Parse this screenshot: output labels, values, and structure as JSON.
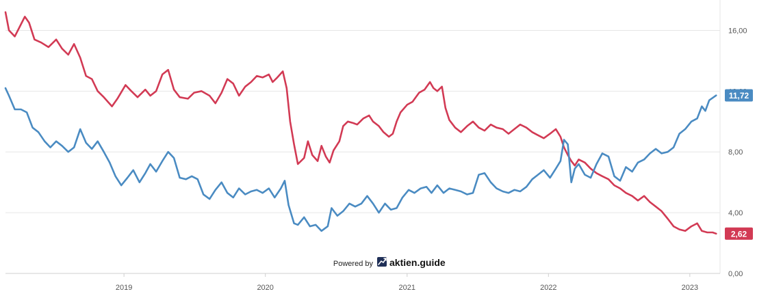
{
  "chart_data": {
    "type": "line",
    "x_axis_labels": [
      "2019",
      "2020",
      "2021",
      "2022",
      "2023"
    ],
    "y_axis_labels": [
      "0,00",
      "4,00",
      "8,00",
      "12,00",
      "16,00"
    ],
    "ylim": [
      0,
      18
    ],
    "xlim": [
      "2018-03-01",
      "2023-03-20"
    ],
    "grid": true,
    "series": [
      {
        "color": "#d23a54",
        "last_value_label": "2,62",
        "points": [
          [
            "2018-03-01",
            17.2
          ],
          [
            "2018-03-10",
            16.0
          ],
          [
            "2018-03-25",
            15.6
          ],
          [
            "2018-04-10",
            16.4
          ],
          [
            "2018-04-20",
            16.9
          ],
          [
            "2018-05-01",
            16.5
          ],
          [
            "2018-05-15",
            15.4
          ],
          [
            "2018-06-01",
            15.2
          ],
          [
            "2018-06-20",
            14.9
          ],
          [
            "2018-07-10",
            15.4
          ],
          [
            "2018-07-25",
            14.8
          ],
          [
            "2018-08-10",
            14.4
          ],
          [
            "2018-08-25",
            15.1
          ],
          [
            "2018-09-10",
            14.2
          ],
          [
            "2018-09-25",
            13.0
          ],
          [
            "2018-10-10",
            12.8
          ],
          [
            "2018-10-25",
            12.0
          ],
          [
            "2018-11-10",
            11.6
          ],
          [
            "2018-12-01",
            11.0
          ],
          [
            "2018-12-15",
            11.5
          ],
          [
            "2019-01-05",
            12.4
          ],
          [
            "2019-01-20",
            12.0
          ],
          [
            "2019-02-05",
            11.6
          ],
          [
            "2019-02-25",
            12.1
          ],
          [
            "2019-03-10",
            11.7
          ],
          [
            "2019-03-25",
            12.0
          ],
          [
            "2019-04-10",
            13.1
          ],
          [
            "2019-04-25",
            13.4
          ],
          [
            "2019-05-10",
            12.1
          ],
          [
            "2019-05-25",
            11.6
          ],
          [
            "2019-06-15",
            11.5
          ],
          [
            "2019-07-01",
            11.9
          ],
          [
            "2019-07-20",
            12.0
          ],
          [
            "2019-08-10",
            11.7
          ],
          [
            "2019-08-25",
            11.2
          ],
          [
            "2019-09-10",
            11.9
          ],
          [
            "2019-09-25",
            12.8
          ],
          [
            "2019-10-10",
            12.5
          ],
          [
            "2019-10-25",
            11.7
          ],
          [
            "2019-11-10",
            12.3
          ],
          [
            "2019-11-25",
            12.6
          ],
          [
            "2019-12-10",
            13.0
          ],
          [
            "2019-12-25",
            12.9
          ],
          [
            "2020-01-10",
            13.1
          ],
          [
            "2020-01-20",
            12.6
          ],
          [
            "2020-02-01",
            12.9
          ],
          [
            "2020-02-15",
            13.3
          ],
          [
            "2020-02-25",
            12.2
          ],
          [
            "2020-03-05",
            10.0
          ],
          [
            "2020-03-15",
            8.5
          ],
          [
            "2020-03-25",
            7.2
          ],
          [
            "2020-04-10",
            7.6
          ],
          [
            "2020-04-20",
            8.7
          ],
          [
            "2020-05-01",
            7.8
          ],
          [
            "2020-05-15",
            7.4
          ],
          [
            "2020-05-25",
            8.4
          ],
          [
            "2020-06-05",
            7.7
          ],
          [
            "2020-06-15",
            7.3
          ],
          [
            "2020-06-25",
            8.1
          ],
          [
            "2020-07-10",
            8.7
          ],
          [
            "2020-07-20",
            9.7
          ],
          [
            "2020-08-01",
            10.0
          ],
          [
            "2020-08-15",
            9.9
          ],
          [
            "2020-08-25",
            9.8
          ],
          [
            "2020-09-10",
            10.2
          ],
          [
            "2020-09-25",
            10.4
          ],
          [
            "2020-10-05",
            10.0
          ],
          [
            "2020-10-20",
            9.7
          ],
          [
            "2020-11-01",
            9.3
          ],
          [
            "2020-11-15",
            9.0
          ],
          [
            "2020-11-25",
            9.2
          ],
          [
            "2020-12-05",
            10.0
          ],
          [
            "2020-12-15",
            10.6
          ],
          [
            "2021-01-01",
            11.1
          ],
          [
            "2021-01-15",
            11.3
          ],
          [
            "2021-02-01",
            11.9
          ],
          [
            "2021-02-15",
            12.1
          ],
          [
            "2021-03-01",
            12.6
          ],
          [
            "2021-03-10",
            12.2
          ],
          [
            "2021-03-20",
            12.0
          ],
          [
            "2021-04-01",
            12.3
          ],
          [
            "2021-04-10",
            10.9
          ],
          [
            "2021-04-20",
            10.1
          ],
          [
            "2021-05-05",
            9.6
          ],
          [
            "2021-05-20",
            9.3
          ],
          [
            "2021-06-05",
            9.7
          ],
          [
            "2021-06-20",
            10.0
          ],
          [
            "2021-07-05",
            9.6
          ],
          [
            "2021-07-20",
            9.4
          ],
          [
            "2021-08-05",
            9.8
          ],
          [
            "2021-08-20",
            9.6
          ],
          [
            "2021-09-05",
            9.5
          ],
          [
            "2021-09-20",
            9.2
          ],
          [
            "2021-10-05",
            9.5
          ],
          [
            "2021-10-20",
            9.8
          ],
          [
            "2021-11-05",
            9.6
          ],
          [
            "2021-11-20",
            9.3
          ],
          [
            "2021-12-05",
            9.1
          ],
          [
            "2021-12-20",
            8.9
          ],
          [
            "2022-01-05",
            9.2
          ],
          [
            "2022-01-20",
            9.5
          ],
          [
            "2022-02-01",
            9.0
          ],
          [
            "2022-02-10",
            8.3
          ],
          [
            "2022-02-20",
            7.8
          ],
          [
            "2022-03-01",
            7.4
          ],
          [
            "2022-03-10",
            7.1
          ],
          [
            "2022-03-20",
            7.5
          ],
          [
            "2022-04-05",
            7.3
          ],
          [
            "2022-04-20",
            6.9
          ],
          [
            "2022-05-05",
            6.6
          ],
          [
            "2022-05-20",
            6.4
          ],
          [
            "2022-06-05",
            6.2
          ],
          [
            "2022-06-20",
            5.8
          ],
          [
            "2022-07-05",
            5.6
          ],
          [
            "2022-07-20",
            5.3
          ],
          [
            "2022-08-05",
            5.1
          ],
          [
            "2022-08-20",
            4.8
          ],
          [
            "2022-09-05",
            5.1
          ],
          [
            "2022-09-20",
            4.7
          ],
          [
            "2022-10-05",
            4.4
          ],
          [
            "2022-10-20",
            4.1
          ],
          [
            "2022-11-05",
            3.6
          ],
          [
            "2022-11-20",
            3.1
          ],
          [
            "2022-12-05",
            2.9
          ],
          [
            "2022-12-20",
            2.8
          ],
          [
            "2023-01-05",
            3.1
          ],
          [
            "2023-01-20",
            3.3
          ],
          [
            "2023-02-01",
            2.8
          ],
          [
            "2023-02-15",
            2.7
          ],
          [
            "2023-03-01",
            2.7
          ],
          [
            "2023-03-10",
            2.62
          ]
        ]
      },
      {
        "color": "#4a8bc2",
        "last_value_label": "11,72",
        "points": [
          [
            "2018-03-01",
            12.2
          ],
          [
            "2018-03-10",
            11.7
          ],
          [
            "2018-03-25",
            10.8
          ],
          [
            "2018-04-10",
            10.8
          ],
          [
            "2018-04-25",
            10.6
          ],
          [
            "2018-05-10",
            9.6
          ],
          [
            "2018-05-25",
            9.3
          ],
          [
            "2018-06-10",
            8.7
          ],
          [
            "2018-06-25",
            8.3
          ],
          [
            "2018-07-10",
            8.7
          ],
          [
            "2018-07-25",
            8.4
          ],
          [
            "2018-08-10",
            8.0
          ],
          [
            "2018-08-25",
            8.3
          ],
          [
            "2018-09-10",
            9.5
          ],
          [
            "2018-09-25",
            8.6
          ],
          [
            "2018-10-10",
            8.2
          ],
          [
            "2018-10-25",
            8.7
          ],
          [
            "2018-11-10",
            8.0
          ],
          [
            "2018-11-25",
            7.3
          ],
          [
            "2018-12-10",
            6.4
          ],
          [
            "2018-12-25",
            5.8
          ],
          [
            "2019-01-10",
            6.3
          ],
          [
            "2019-01-25",
            6.8
          ],
          [
            "2019-02-10",
            6.0
          ],
          [
            "2019-02-25",
            6.6
          ],
          [
            "2019-03-10",
            7.2
          ],
          [
            "2019-03-25",
            6.7
          ],
          [
            "2019-04-10",
            7.4
          ],
          [
            "2019-04-25",
            8.0
          ],
          [
            "2019-05-10",
            7.6
          ],
          [
            "2019-05-25",
            6.3
          ],
          [
            "2019-06-10",
            6.2
          ],
          [
            "2019-06-25",
            6.4
          ],
          [
            "2019-07-10",
            6.2
          ],
          [
            "2019-07-25",
            5.2
          ],
          [
            "2019-08-10",
            4.9
          ],
          [
            "2019-08-25",
            5.5
          ],
          [
            "2019-09-10",
            6.0
          ],
          [
            "2019-09-25",
            5.3
          ],
          [
            "2019-10-10",
            5.0
          ],
          [
            "2019-10-25",
            5.6
          ],
          [
            "2019-11-10",
            5.2
          ],
          [
            "2019-11-25",
            5.4
          ],
          [
            "2019-12-10",
            5.5
          ],
          [
            "2019-12-25",
            5.3
          ],
          [
            "2020-01-10",
            5.6
          ],
          [
            "2020-01-25",
            5.0
          ],
          [
            "2020-02-10",
            5.6
          ],
          [
            "2020-02-20",
            6.1
          ],
          [
            "2020-03-01",
            4.5
          ],
          [
            "2020-03-15",
            3.3
          ],
          [
            "2020-03-25",
            3.2
          ],
          [
            "2020-04-10",
            3.7
          ],
          [
            "2020-04-25",
            3.1
          ],
          [
            "2020-05-10",
            3.2
          ],
          [
            "2020-05-25",
            2.8
          ],
          [
            "2020-06-10",
            3.1
          ],
          [
            "2020-06-20",
            4.3
          ],
          [
            "2020-07-05",
            3.8
          ],
          [
            "2020-07-20",
            4.1
          ],
          [
            "2020-08-05",
            4.6
          ],
          [
            "2020-08-20",
            4.4
          ],
          [
            "2020-09-05",
            4.6
          ],
          [
            "2020-09-20",
            5.1
          ],
          [
            "2020-10-05",
            4.6
          ],
          [
            "2020-10-20",
            4.0
          ],
          [
            "2020-11-05",
            4.6
          ],
          [
            "2020-11-20",
            4.2
          ],
          [
            "2020-12-05",
            4.3
          ],
          [
            "2020-12-20",
            5.0
          ],
          [
            "2021-01-05",
            5.5
          ],
          [
            "2021-01-20",
            5.3
          ],
          [
            "2021-02-05",
            5.6
          ],
          [
            "2021-02-20",
            5.7
          ],
          [
            "2021-03-05",
            5.3
          ],
          [
            "2021-03-20",
            5.8
          ],
          [
            "2021-04-05",
            5.3
          ],
          [
            "2021-04-20",
            5.6
          ],
          [
            "2021-05-05",
            5.5
          ],
          [
            "2021-05-20",
            5.4
          ],
          [
            "2021-06-05",
            5.2
          ],
          [
            "2021-06-20",
            5.3
          ],
          [
            "2021-07-05",
            6.5
          ],
          [
            "2021-07-20",
            6.6
          ],
          [
            "2021-08-05",
            6.0
          ],
          [
            "2021-08-20",
            5.6
          ],
          [
            "2021-09-05",
            5.4
          ],
          [
            "2021-09-20",
            5.3
          ],
          [
            "2021-10-05",
            5.5
          ],
          [
            "2021-10-20",
            5.4
          ],
          [
            "2021-11-05",
            5.7
          ],
          [
            "2021-11-20",
            6.2
          ],
          [
            "2021-12-05",
            6.5
          ],
          [
            "2021-12-20",
            6.8
          ],
          [
            "2022-01-05",
            6.3
          ],
          [
            "2022-01-20",
            6.9
          ],
          [
            "2022-02-01",
            7.4
          ],
          [
            "2022-02-10",
            8.8
          ],
          [
            "2022-02-20",
            8.5
          ],
          [
            "2022-03-01",
            6.0
          ],
          [
            "2022-03-10",
            6.9
          ],
          [
            "2022-03-20",
            7.2
          ],
          [
            "2022-04-05",
            6.5
          ],
          [
            "2022-04-20",
            6.3
          ],
          [
            "2022-05-05",
            7.2
          ],
          [
            "2022-05-20",
            7.9
          ],
          [
            "2022-06-05",
            7.7
          ],
          [
            "2022-06-20",
            6.4
          ],
          [
            "2022-07-05",
            6.1
          ],
          [
            "2022-07-20",
            7.0
          ],
          [
            "2022-08-05",
            6.7
          ],
          [
            "2022-08-20",
            7.3
          ],
          [
            "2022-09-05",
            7.5
          ],
          [
            "2022-09-20",
            7.9
          ],
          [
            "2022-10-05",
            8.2
          ],
          [
            "2022-10-20",
            7.9
          ],
          [
            "2022-11-05",
            8.0
          ],
          [
            "2022-11-20",
            8.3
          ],
          [
            "2022-12-05",
            9.2
          ],
          [
            "2022-12-20",
            9.5
          ],
          [
            "2023-01-05",
            10.0
          ],
          [
            "2023-01-20",
            10.2
          ],
          [
            "2023-02-01",
            11.0
          ],
          [
            "2023-02-10",
            10.7
          ],
          [
            "2023-02-20",
            11.4
          ],
          [
            "2023-03-10",
            11.72
          ]
        ]
      }
    ]
  },
  "footer": {
    "powered_by": "Powered by",
    "brand_name": "aktien.guide",
    "brand_icon": "trend-up-icon"
  }
}
